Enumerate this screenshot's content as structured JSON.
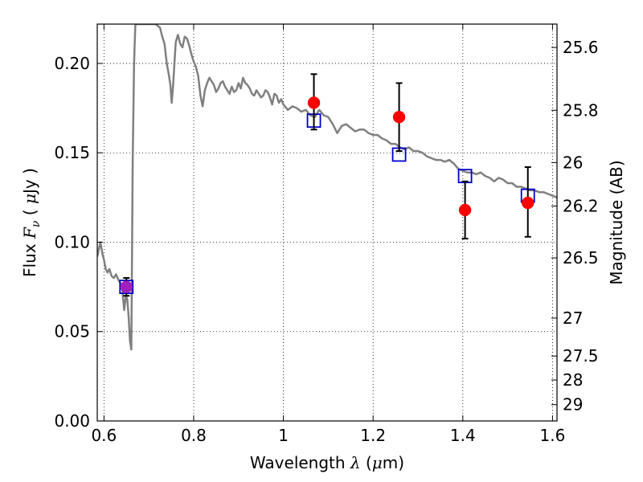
{
  "chart_data": {
    "type": "scatter",
    "xlabel": "Wavelength  λ (μm)",
    "ylabel": "Flux  F_ν  ( μJy )",
    "ylabel_parts": {
      "pre": "Flux  ",
      "sym": "F",
      "sub": "ν",
      "post": "  ( ",
      "unit_sym": "μ",
      "unit": "Jy )"
    },
    "xlabel_parts": {
      "pre": "Wavelength  ",
      "sym": "λ",
      "post": " (",
      "unit_sym": "μ",
      "unit": "m)"
    },
    "y2label": "Magnitude (AB)",
    "xlim": [
      0.585,
      1.61
    ],
    "ylim": [
      0.0,
      0.222
    ],
    "xticks": [
      0.6,
      0.8,
      1.0,
      1.2,
      1.4,
      1.6
    ],
    "xtick_labels": [
      "0.6",
      "0.8",
      "1",
      "1.2",
      "1.4",
      "1.6"
    ],
    "yticks": [
      0.0,
      0.05,
      0.1,
      0.15,
      0.2
    ],
    "ytick_labels": [
      "0.00",
      "0.05",
      "0.10",
      "0.15",
      "0.20"
    ],
    "y2ticks": [
      {
        "label": "25.6",
        "mag": 25.6
      },
      {
        "label": "25.8",
        "mag": 25.8
      },
      {
        "label": "26",
        "mag": 26.0
      },
      {
        "label": "26.2",
        "mag": 26.2
      },
      {
        "label": "26.5",
        "mag": 26.5
      },
      {
        "label": "27",
        "mag": 27.0
      },
      {
        "label": "27.5",
        "mag": 27.5
      },
      {
        "label": "28",
        "mag": 28.0
      },
      {
        "label": "29",
        "mag": 29.0
      }
    ],
    "grid": true,
    "grid_style": "dotted",
    "series": [
      {
        "kind": "line",
        "color": "#808080",
        "x": [
          0.585,
          0.592,
          0.597,
          0.6,
          0.604,
          0.608,
          0.612,
          0.617,
          0.622,
          0.627,
          0.632,
          0.637,
          0.641,
          0.645,
          0.649,
          0.652,
          0.655,
          0.658,
          0.661,
          0.664,
          0.667,
          0.67,
          0.673,
          0.676,
          0.68,
          0.685,
          0.69,
          0.695,
          0.7,
          0.705,
          0.71,
          0.715,
          0.72,
          0.725,
          0.73,
          0.735,
          0.74,
          0.745,
          0.748,
          0.751,
          0.754,
          0.757,
          0.76,
          0.765,
          0.77,
          0.775,
          0.78,
          0.785,
          0.79,
          0.795,
          0.8,
          0.805,
          0.81,
          0.815,
          0.82,
          0.825,
          0.83,
          0.835,
          0.84,
          0.845,
          0.85,
          0.855,
          0.86,
          0.865,
          0.87,
          0.875,
          0.88,
          0.885,
          0.89,
          0.895,
          0.9,
          0.905,
          0.91,
          0.915,
          0.92,
          0.925,
          0.93,
          0.935,
          0.94,
          0.945,
          0.95,
          0.955,
          0.96,
          0.965,
          0.97,
          0.975,
          0.98,
          0.985,
          0.99,
          0.995,
          1.0,
          1.01,
          1.02,
          1.03,
          1.04,
          1.05,
          1.06,
          1.07,
          1.08,
          1.09,
          1.1,
          1.11,
          1.12,
          1.13,
          1.14,
          1.15,
          1.16,
          1.17,
          1.18,
          1.19,
          1.2,
          1.21,
          1.22,
          1.23,
          1.24,
          1.25,
          1.26,
          1.27,
          1.28,
          1.29,
          1.3,
          1.31,
          1.32,
          1.33,
          1.34,
          1.35,
          1.36,
          1.37,
          1.38,
          1.39,
          1.4,
          1.41,
          1.42,
          1.43,
          1.44,
          1.45,
          1.46,
          1.47,
          1.48,
          1.49,
          1.5,
          1.51,
          1.52,
          1.53,
          1.54,
          1.55,
          1.56,
          1.57,
          1.58,
          1.59,
          1.6,
          1.61
        ],
        "y": [
          0.092,
          0.1,
          0.093,
          0.09,
          0.085,
          0.083,
          0.085,
          0.081,
          0.08,
          0.082,
          0.079,
          0.077,
          0.073,
          0.062,
          0.07,
          0.068,
          0.058,
          0.045,
          0.04,
          0.145,
          0.2,
          0.222,
          0.222,
          0.222,
          0.222,
          0.222,
          0.222,
          0.222,
          0.222,
          0.222,
          0.222,
          0.222,
          0.221,
          0.22,
          0.215,
          0.211,
          0.2,
          0.193,
          0.188,
          0.178,
          0.187,
          0.2,
          0.212,
          0.216,
          0.211,
          0.209,
          0.215,
          0.214,
          0.21,
          0.205,
          0.201,
          0.198,
          0.193,
          0.182,
          0.176,
          0.185,
          0.189,
          0.192,
          0.19,
          0.188,
          0.184,
          0.186,
          0.189,
          0.19,
          0.187,
          0.185,
          0.183,
          0.187,
          0.184,
          0.185,
          0.189,
          0.186,
          0.192,
          0.189,
          0.188,
          0.186,
          0.183,
          0.182,
          0.185,
          0.183,
          0.181,
          0.182,
          0.185,
          0.184,
          0.181,
          0.177,
          0.183,
          0.182,
          0.178,
          0.18,
          0.177,
          0.174,
          0.176,
          0.175,
          0.173,
          0.174,
          0.171,
          0.17,
          0.174,
          0.171,
          0.17,
          0.166,
          0.161,
          0.165,
          0.166,
          0.164,
          0.162,
          0.163,
          0.163,
          0.161,
          0.16,
          0.16,
          0.158,
          0.157,
          0.155,
          0.155,
          0.153,
          0.152,
          0.153,
          0.151,
          0.151,
          0.15,
          0.148,
          0.147,
          0.146,
          0.146,
          0.145,
          0.146,
          0.144,
          0.141,
          0.14,
          0.139,
          0.139,
          0.138,
          0.139,
          0.137,
          0.136,
          0.134,
          0.136,
          0.135,
          0.133,
          0.133,
          0.131,
          0.131,
          0.13,
          0.129,
          0.129,
          0.128,
          0.128,
          0.127,
          0.126,
          0.125
        ]
      },
      {
        "kind": "markers",
        "marker": "open-square",
        "color": "#0000cc",
        "points": [
          {
            "x": 0.65,
            "y": 0.075
          },
          {
            "x": 1.068,
            "y": 0.168
          },
          {
            "x": 1.258,
            "y": 0.149
          },
          {
            "x": 1.405,
            "y": 0.137
          },
          {
            "x": 1.545,
            "y": 0.126
          }
        ]
      },
      {
        "kind": "markers",
        "marker": "filled-circle",
        "color": "#ff0000",
        "points": [
          {
            "x": 1.068,
            "y": 0.178,
            "ylo": 0.163,
            "yhi": 0.194
          },
          {
            "x": 1.258,
            "y": 0.17,
            "ylo": 0.151,
            "yhi": 0.189
          },
          {
            "x": 1.405,
            "y": 0.118,
            "ylo": 0.102,
            "yhi": 0.134
          },
          {
            "x": 1.545,
            "y": 0.122,
            "ylo": 0.103,
            "yhi": 0.142
          }
        ]
      },
      {
        "kind": "markers",
        "marker": "filled-circle",
        "color": "#a020c0",
        "points": [
          {
            "x": 0.65,
            "y": 0.075,
            "ylo": 0.07,
            "yhi": 0.08
          }
        ]
      }
    ]
  }
}
